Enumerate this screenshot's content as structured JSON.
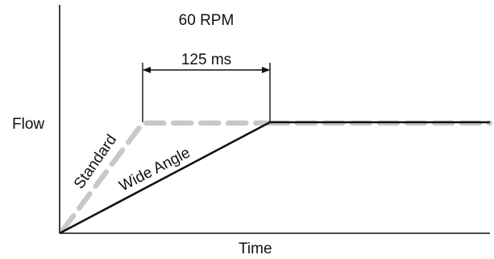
{
  "labels": {
    "rpm": "60 RPM",
    "duration": "125 ms",
    "y_axis": "Flow",
    "x_axis": "Time",
    "standard": "Standard",
    "wide_angle": "Wide Angle"
  },
  "colors": {
    "axis": "#111111",
    "wide_angle_line": "#111111",
    "standard_line": "#c8c8c8",
    "dimension": "#111111"
  }
}
